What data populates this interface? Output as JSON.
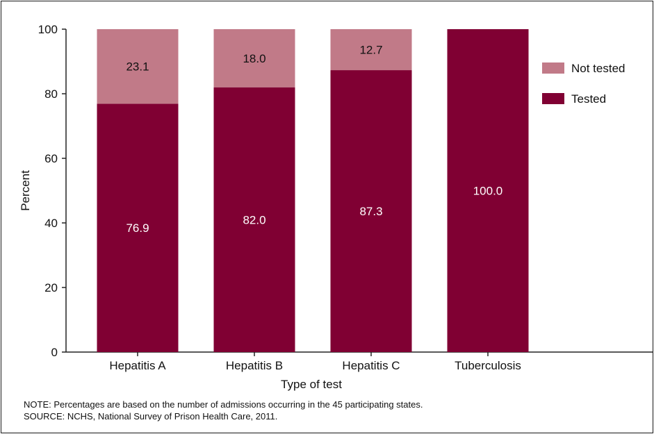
{
  "chart_data": {
    "type": "bar",
    "stacked": true,
    "categories": [
      "Hepatitis A",
      "Hepatitis B",
      "Hepatitis C",
      "Tuberculosis"
    ],
    "series": [
      {
        "name": "Tested",
        "values": [
          76.9,
          82.0,
          87.3,
          100.0
        ],
        "color": "#800033"
      },
      {
        "name": "Not tested",
        "values": [
          23.1,
          18.0,
          12.7,
          0
        ],
        "color": "#c17a88"
      }
    ],
    "xlabel": "Type of test",
    "ylabel": "Percent",
    "ylim": [
      0,
      100
    ],
    "yticks": [
      0,
      20,
      40,
      60,
      80,
      100
    ],
    "grid": false,
    "legend_position": "right",
    "legend": [
      "Not tested",
      "Tested"
    ],
    "data_labels": {
      "tested": [
        "76.9",
        "82.0",
        "87.3",
        "100.0"
      ],
      "not_tested": [
        "23.1",
        "18.0",
        "12.7",
        ""
      ]
    }
  },
  "footnotes": {
    "note": "NOTE: Percentages are based on the number of admissions occurring in the 45 participating states.",
    "source": "SOURCE: NCHS, National Survey of Prison Health Care, 2011."
  },
  "colors": {
    "tested": "#800033",
    "not_tested": "#c17a88",
    "label_dark": "#111111",
    "label_light": "#ffffff"
  }
}
